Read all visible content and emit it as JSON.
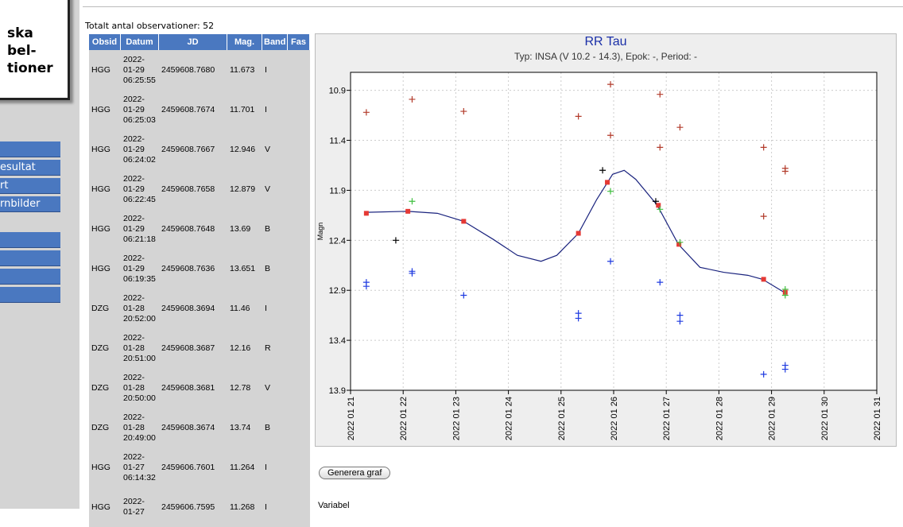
{
  "sidebar": {
    "logo": [
      "ska",
      "bel-",
      "tioner"
    ],
    "menu": [
      "esultat",
      "rt",
      "rnbilder"
    ]
  },
  "summary": "Totalt antal observationer: 52",
  "table": {
    "headers": [
      "Obsid",
      "Datum",
      "JD",
      "Mag.",
      "Band",
      "Fas"
    ],
    "rows": [
      [
        "HGG",
        "2022-01-29 06:25:55",
        "2459608.7680",
        "11.673",
        "I"
      ],
      [
        "HGG",
        "2022-01-29 06:25:03",
        "2459608.7674",
        "11.701",
        "I"
      ],
      [
        "HGG",
        "2022-01-29 06:24:02",
        "2459608.7667",
        "12.946",
        "V"
      ],
      [
        "HGG",
        "2022-01-29 06:22:45",
        "2459608.7658",
        "12.879",
        "V"
      ],
      [
        "HGG",
        "2022-01-29 06:21:18",
        "2459608.7648",
        "13.69",
        "B"
      ],
      [
        "HGG",
        "2022-01-29 06:19:35",
        "2459608.7636",
        "13.651",
        "B"
      ],
      [
        "DZG",
        "2022-01-28 20:52:00",
        "2459608.3694",
        "11.46",
        "I"
      ],
      [
        "DZG",
        "2022-01-28 20:51:00",
        "2459608.3687",
        "12.16",
        "R"
      ],
      [
        "DZG",
        "2022-01-28 20:50:00",
        "2459608.3681",
        "12.78",
        "V"
      ],
      [
        "DZG",
        "2022-01-28 20:49:00",
        "2459608.3674",
        "13.74",
        "B"
      ],
      [
        "HGG",
        "2022-01-27 06:14:32",
        "2459606.7601",
        "11.264",
        "I"
      ],
      [
        "HGG",
        "2022-01-27",
        "2459606.7595",
        "11.268",
        "I"
      ]
    ]
  },
  "chart_data": {
    "type": "scatter",
    "title": "RR Tau",
    "subtitle": "Typ: INSA (V 10.2 - 14.3), Epok: -, Period: -",
    "y_label": "Magn",
    "y_reversed": true,
    "grid": true,
    "xlim": [
      21,
      31
    ],
    "xticks": [
      {
        "value": 21,
        "label": "2022 01 21"
      },
      {
        "value": 22,
        "label": "2022 01 22"
      },
      {
        "value": 23,
        "label": "2022 01 23"
      },
      {
        "value": 24,
        "label": "2022 01 24"
      },
      {
        "value": 25,
        "label": "2022 01 25"
      },
      {
        "value": 26,
        "label": "2022 01 26"
      },
      {
        "value": 27,
        "label": "2022 01 27"
      },
      {
        "value": 28,
        "label": "2022 01 28"
      },
      {
        "value": 29,
        "label": "2022 01 29"
      },
      {
        "value": 30,
        "label": "2022 01 30"
      },
      {
        "value": 31,
        "label": "2022 01 31"
      }
    ],
    "ylim": [
      10.72,
      13.9
    ],
    "yticks": [
      10.9,
      11.4,
      11.9,
      12.4,
      12.9,
      13.4,
      13.9
    ],
    "fit": {
      "color": "#1a237e",
      "x": [
        21.3,
        22.09,
        22.65,
        23.15,
        23.71,
        24.17,
        24.62,
        24.92,
        25.33,
        25.68,
        25.98,
        26.2,
        26.42,
        26.83,
        27.23,
        27.64,
        28.09,
        28.55,
        28.83,
        29.24
      ],
      "values": [
        12.12,
        12.11,
        12.13,
        12.21,
        12.39,
        12.55,
        12.61,
        12.55,
        12.33,
        11.99,
        11.74,
        11.7,
        11.79,
        12.05,
        12.44,
        12.67,
        12.72,
        12.75,
        12.79,
        12.92
      ]
    },
    "series": [
      {
        "color": "#e53935",
        "marker": "square",
        "x": [
          21.3,
          22.09,
          23.15,
          25.33,
          25.88,
          26.85,
          27.24,
          28.85,
          29.26
        ],
        "values": [
          12.13,
          12.11,
          12.21,
          12.33,
          11.82,
          12.05,
          12.44,
          12.79,
          12.92
        ]
      },
      {
        "color": "#b23a2a",
        "marker": "plus",
        "x": [
          21.3,
          22.17,
          23.15,
          25.33,
          25.94,
          25.94,
          26.88,
          26.88,
          27.26,
          28.85,
          28.85,
          29.26,
          29.26
        ],
        "values": [
          11.12,
          10.99,
          11.11,
          11.16,
          10.84,
          11.35,
          10.94,
          11.47,
          11.27,
          11.47,
          12.16,
          11.68,
          11.71
        ]
      },
      {
        "color": "#1e3ae0",
        "marker": "plus",
        "x": [
          21.3,
          21.3,
          22.17,
          22.17,
          23.15,
          25.33,
          25.33,
          25.94,
          26.88,
          27.26,
          27.26,
          28.85,
          29.26,
          29.26
        ],
        "values": [
          12.82,
          12.86,
          12.71,
          12.73,
          12.95,
          13.13,
          13.18,
          12.61,
          12.82,
          13.15,
          13.21,
          13.74,
          13.65,
          13.69
        ]
      },
      {
        "color": "#3fbf3f",
        "marker": "plus",
        "x": [
          22.17,
          25.94,
          26.88,
          27.26,
          29.26,
          29.26
        ],
        "values": [
          12.01,
          11.91,
          12.09,
          12.42,
          12.89,
          12.95
        ]
      },
      {
        "color": "#000000",
        "marker": "plus",
        "x": [
          21.86,
          25.79,
          26.8
        ],
        "values": [
          12.4,
          11.7,
          12.01
        ]
      }
    ]
  },
  "button": "Generera graf",
  "footer_label": "Variabel"
}
